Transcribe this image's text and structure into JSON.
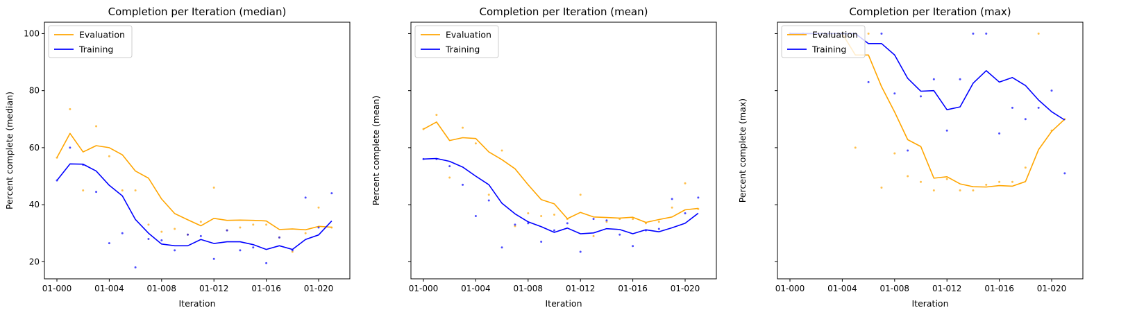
{
  "chart_data": [
    {
      "type": "line",
      "title": "Completion per Iteration (median)",
      "xlabel": "Iteration",
      "ylabel": "Percent complete (median)",
      "ylim": [
        14,
        104
      ],
      "show_yticklabels": true,
      "yticks": [
        20,
        40,
        60,
        80,
        100
      ],
      "x": [
        "01-000",
        "01-001",
        "01-002",
        "01-003",
        "01-004",
        "01-005",
        "01-006",
        "01-007",
        "01-008",
        "01-009",
        "01-010",
        "01-011",
        "01-012",
        "01-013",
        "01-014",
        "01-015",
        "01-016",
        "01-017",
        "01-018",
        "01-019",
        "01-020",
        "01-021"
      ],
      "xticks": [
        "01-000",
        "01-004",
        "01-008",
        "01-012",
        "01-016",
        "01-020"
      ],
      "legend_position": "upper left",
      "series": [
        {
          "name": "Evaluation",
          "color": "#ffa500",
          "raw": [
            56.5,
            73.5,
            45.0,
            67.5,
            57.0,
            45.0,
            45.0,
            33.0,
            30.5,
            31.5,
            29.5,
            34.0,
            46.0,
            31.0,
            32.0,
            33.0,
            33.0,
            28.5,
            23.5,
            30.0,
            39.0,
            32.0
          ],
          "smoothed": [
            56.5,
            65.0,
            58.5,
            60.7,
            60.0,
            57.5,
            51.8,
            49.3,
            42.0,
            36.9,
            34.7,
            32.6,
            35.2,
            34.5,
            34.6,
            34.5,
            34.3,
            31.3,
            31.5,
            31.2,
            32.4,
            32.1
          ]
        },
        {
          "name": "Training",
          "color": "#0000ff",
          "raw": [
            48.5,
            60.0,
            54.0,
            44.5,
            26.5,
            30.0,
            18.0,
            28.0,
            27.5,
            24.0,
            29.5,
            29.0,
            21.0,
            31.0,
            24.0,
            25.0,
            19.5,
            28.5,
            24.0,
            42.5,
            32.0,
            44.0
          ],
          "smoothed": [
            48.5,
            54.3,
            54.2,
            51.8,
            46.8,
            43.1,
            34.8,
            30.0,
            26.2,
            25.6,
            25.6,
            27.8,
            26.4,
            27.0,
            27.0,
            26.0,
            24.3,
            25.6,
            24.3,
            27.8,
            29.4,
            34.3
          ]
        }
      ]
    },
    {
      "type": "line",
      "title": "Completion per Iteration (mean)",
      "xlabel": "Iteration",
      "ylabel": "Percent complete (mean)",
      "ylim": [
        14,
        104
      ],
      "show_yticklabels": false,
      "yticks": [
        20,
        40,
        60,
        80,
        100
      ],
      "x": [
        "01-000",
        "01-001",
        "01-002",
        "01-003",
        "01-004",
        "01-005",
        "01-006",
        "01-007",
        "01-008",
        "01-009",
        "01-010",
        "01-011",
        "01-012",
        "01-013",
        "01-014",
        "01-015",
        "01-016",
        "01-017",
        "01-018",
        "01-019",
        "01-020",
        "01-021"
      ],
      "xticks": [
        "01-000",
        "01-004",
        "01-008",
        "01-012",
        "01-016",
        "01-020"
      ],
      "legend_position": "upper left",
      "series": [
        {
          "name": "Evaluation",
          "color": "#ffa500",
          "raw": [
            66.5,
            71.5,
            49.5,
            67.0,
            61.5,
            43.5,
            59.0,
            32.5,
            37.0,
            36.0,
            36.5,
            35.0,
            43.5,
            29.0,
            34.0,
            35.0,
            35.0,
            33.5,
            34.0,
            39.0,
            47.5,
            38.5
          ],
          "smoothed": [
            66.5,
            69.0,
            62.5,
            63.5,
            63.2,
            58.5,
            55.8,
            52.6,
            47.0,
            41.8,
            40.3,
            35.1,
            37.3,
            35.7,
            35.5,
            35.3,
            35.6,
            33.8,
            34.8,
            35.7,
            38.2,
            38.7
          ]
        },
        {
          "name": "Training",
          "color": "#0000ff",
          "raw": [
            56.0,
            56.0,
            53.5,
            47.0,
            36.0,
            41.5,
            25.0,
            33.0,
            33.5,
            27.0,
            31.0,
            33.5,
            23.5,
            35.0,
            34.5,
            29.5,
            25.5,
            31.0,
            31.5,
            42.0,
            37.0,
            42.5
          ],
          "smoothed": [
            56.0,
            56.2,
            55.2,
            53.2,
            50.0,
            47.0,
            40.5,
            36.8,
            34.0,
            32.3,
            30.3,
            31.8,
            29.8,
            30.1,
            31.6,
            31.3,
            29.8,
            31.2,
            30.5,
            31.9,
            33.5,
            37.0
          ]
        }
      ]
    },
    {
      "type": "line",
      "title": "Completion per Iteration (max)",
      "xlabel": "Iteration",
      "ylabel": "Percent complete (max)",
      "ylim": [
        14,
        104
      ],
      "show_yticklabels": false,
      "yticks": [
        20,
        40,
        60,
        80,
        100
      ],
      "x": [
        "01-000",
        "01-001",
        "01-002",
        "01-003",
        "01-004",
        "01-005",
        "01-006",
        "01-007",
        "01-008",
        "01-009",
        "01-010",
        "01-011",
        "01-012",
        "01-013",
        "01-014",
        "01-015",
        "01-016",
        "01-017",
        "01-018",
        "01-019",
        "01-020",
        "01-021"
      ],
      "xticks": [
        "01-000",
        "01-004",
        "01-008",
        "01-012",
        "01-016",
        "01-020"
      ],
      "legend_position": "upper left",
      "series": [
        {
          "name": "Evaluation",
          "color": "#ffa500",
          "raw": [
            100.0,
            100.0,
            100.0,
            100.0,
            100.0,
            60.0,
            100.0,
            46.0,
            58.0,
            50.0,
            48.0,
            45.0,
            49.0,
            45.0,
            45.0,
            47.0,
            48.0,
            48.0,
            53.0,
            100.0,
            66.0,
            70.0
          ],
          "smoothed": [
            100.0,
            100.0,
            100.0,
            100.0,
            100.0,
            92.5,
            92.5,
            81.4,
            72.5,
            62.8,
            60.4,
            49.3,
            49.8,
            47.3,
            46.3,
            46.2,
            46.7,
            46.5,
            48.1,
            59.3,
            65.7,
            70.0
          ]
        },
        {
          "name": "Training",
          "color": "#0000ff",
          "raw": [
            100.0,
            100.0,
            100.0,
            100.0,
            100.0,
            100.0,
            83.0,
            100.0,
            79.0,
            59.0,
            78.0,
            84.0,
            66.0,
            84.0,
            100.0,
            100.0,
            65.0,
            74.0,
            70.0,
            74.0,
            80.0,
            51.0
          ],
          "smoothed": [
            100.0,
            100.0,
            100.0,
            100.0,
            100.0,
            100.0,
            96.5,
            96.5,
            92.5,
            84.3,
            79.8,
            80.0,
            73.3,
            74.3,
            82.6,
            87.0,
            83.0,
            84.6,
            81.8,
            76.7,
            72.6,
            69.7
          ]
        }
      ]
    }
  ]
}
